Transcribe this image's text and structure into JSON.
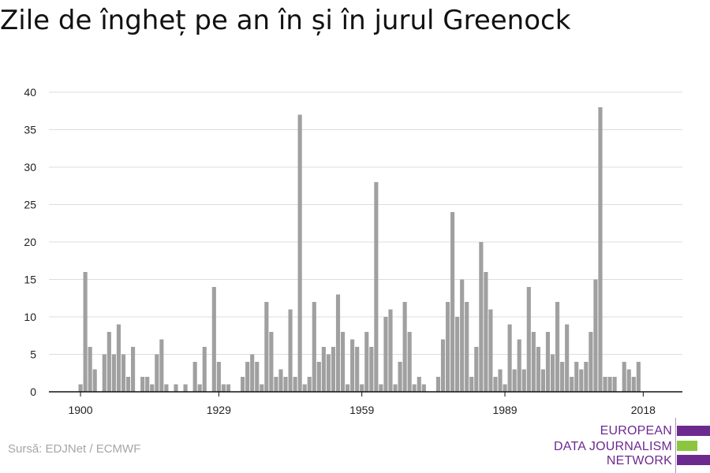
{
  "title": "Zile de îngheț pe an în și în jurul Greenock",
  "source": "Sursă: EDJNet / ECMWF",
  "logo": {
    "lines": [
      "EUROPEAN",
      "DATA JOURNALISM",
      "NETWORK"
    ],
    "colors": [
      "#6c2a8f",
      "#8cc63f",
      "#6c2a8f"
    ]
  },
  "colors": {
    "bar": "#a0a0a0",
    "grid": "#dddddd",
    "axis": "#111111"
  },
  "chart_data": {
    "type": "bar",
    "title": "Zile de îngheț pe an în și în jurul Greenock",
    "xlabel": "",
    "ylabel": "",
    "ylim": [
      0,
      40
    ],
    "yticks": [
      0,
      5,
      10,
      15,
      20,
      25,
      30,
      35,
      40
    ],
    "xticks": [
      1900,
      1929,
      1959,
      1989,
      2018
    ],
    "grid": true,
    "x_start": 1900,
    "x_end": 2018,
    "values": [
      1,
      16,
      6,
      3,
      0,
      5,
      8,
      5,
      9,
      5,
      2,
      6,
      0,
      2,
      2,
      1,
      5,
      7,
      1,
      0,
      1,
      0,
      1,
      0,
      4,
      1,
      6,
      0,
      14,
      4,
      1,
      1,
      0,
      0,
      2,
      4,
      5,
      4,
      1,
      12,
      8,
      2,
      3,
      2,
      11,
      2,
      37,
      1,
      2,
      12,
      4,
      6,
      5,
      6,
      13,
      8,
      1,
      7,
      6,
      1,
      8,
      6,
      28,
      1,
      10,
      11,
      1,
      4,
      12,
      8,
      1,
      2,
      1,
      0,
      0,
      2,
      7,
      12,
      24,
      10,
      15,
      12,
      2,
      6,
      20,
      16,
      11,
      2,
      3,
      1,
      9,
      3,
      7,
      3,
      14,
      8,
      6,
      3,
      8,
      5,
      12,
      4,
      9,
      2,
      4,
      3,
      4,
      8,
      15,
      38,
      2,
      2,
      2,
      0,
      4,
      3,
      2,
      4
    ]
  }
}
